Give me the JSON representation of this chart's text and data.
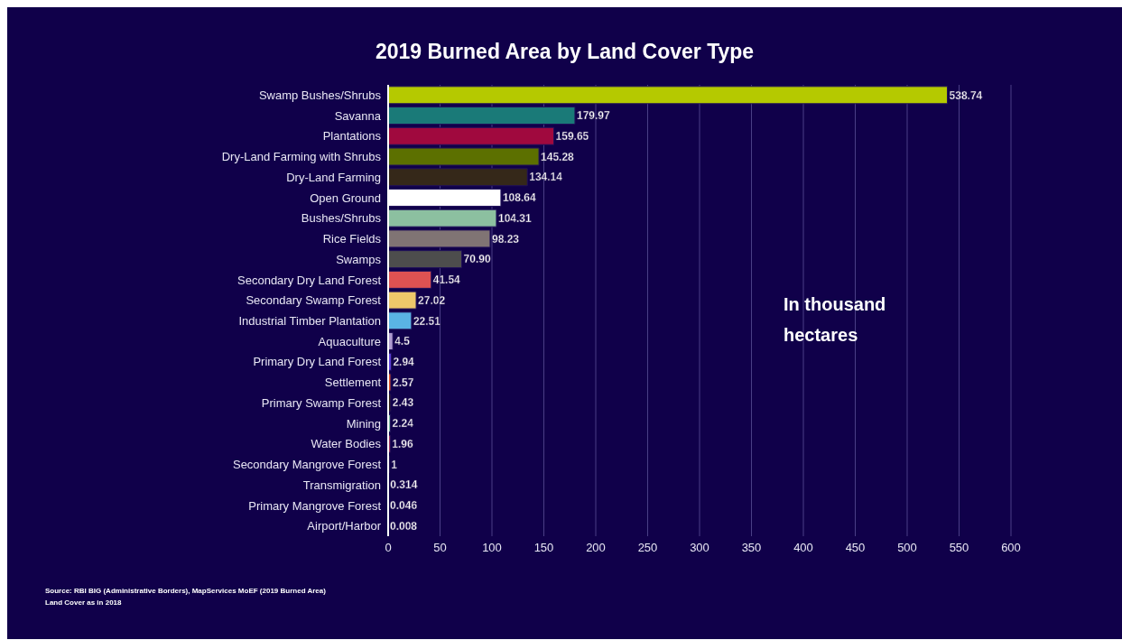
{
  "chart_data": {
    "type": "bar",
    "orientation": "horizontal",
    "title": "2019 Burned Area by Land Cover Type",
    "categories": [
      "Swamp Bushes/Shrubs",
      "Savanna",
      "Plantations",
      "Dry-Land Farming with Shrubs",
      "Dry-Land Farming",
      "Open Ground",
      "Bushes/Shrubs",
      "Rice Fields",
      "Swamps",
      "Secondary Dry Land Forest",
      "Secondary Swamp Forest",
      "Industrial Timber Plantation",
      "Aquaculture",
      "Primary Dry Land Forest",
      "Settlement",
      "Primary Swamp Forest",
      "Mining",
      "Water Bodies",
      "Secondary Mangrove Forest",
      "Transmigration",
      "Primary Mangrove Forest",
      "Airport/Harbor"
    ],
    "values": [
      538.74,
      179.97,
      159.65,
      145.28,
      134.14,
      108.64,
      104.31,
      98.23,
      70.9,
      41.54,
      27.02,
      22.51,
      4.5,
      2.94,
      2.57,
      2.43,
      2.24,
      1.96,
      1,
      0.314,
      0.046,
      0.008
    ],
    "value_labels": [
      "538.74",
      "179.97",
      "159.65",
      "145.28",
      "134.14",
      "108.64",
      "104.31",
      "98.23",
      "70.90",
      "41.54",
      "27.02",
      "22.51",
      "4.5",
      "2.94",
      "2.57",
      "2.43",
      "2.24",
      "1.96",
      "1",
      "0.314",
      "0.046",
      "0.008"
    ],
    "colors": [
      "#b5c900",
      "#1a7a78",
      "#a0093e",
      "#5c7000",
      "#352819",
      "#ffffff",
      "#8cc0a0",
      "#807474",
      "#4d4d4d",
      "#de5252",
      "#eec86a",
      "#5ab4e4",
      "#b09cd0",
      "#6040e0",
      "#e85020",
      "#302010",
      "#80c0a0",
      "#d04060",
      "#e0b040",
      "#2050a0",
      "#3060c0",
      "#404080"
    ],
    "xlim": [
      0,
      600
    ],
    "xticks": [
      0,
      50,
      100,
      150,
      200,
      250,
      300,
      350,
      400,
      450,
      500,
      550,
      600
    ],
    "grid": "x",
    "legend": false,
    "annotations": [
      "In thousand hectares",
      "Source: RBI BIG (Administrative Borders), MapServices MoEF (2019 Burned Area)",
      "Land Cover as in 2018"
    ]
  }
}
